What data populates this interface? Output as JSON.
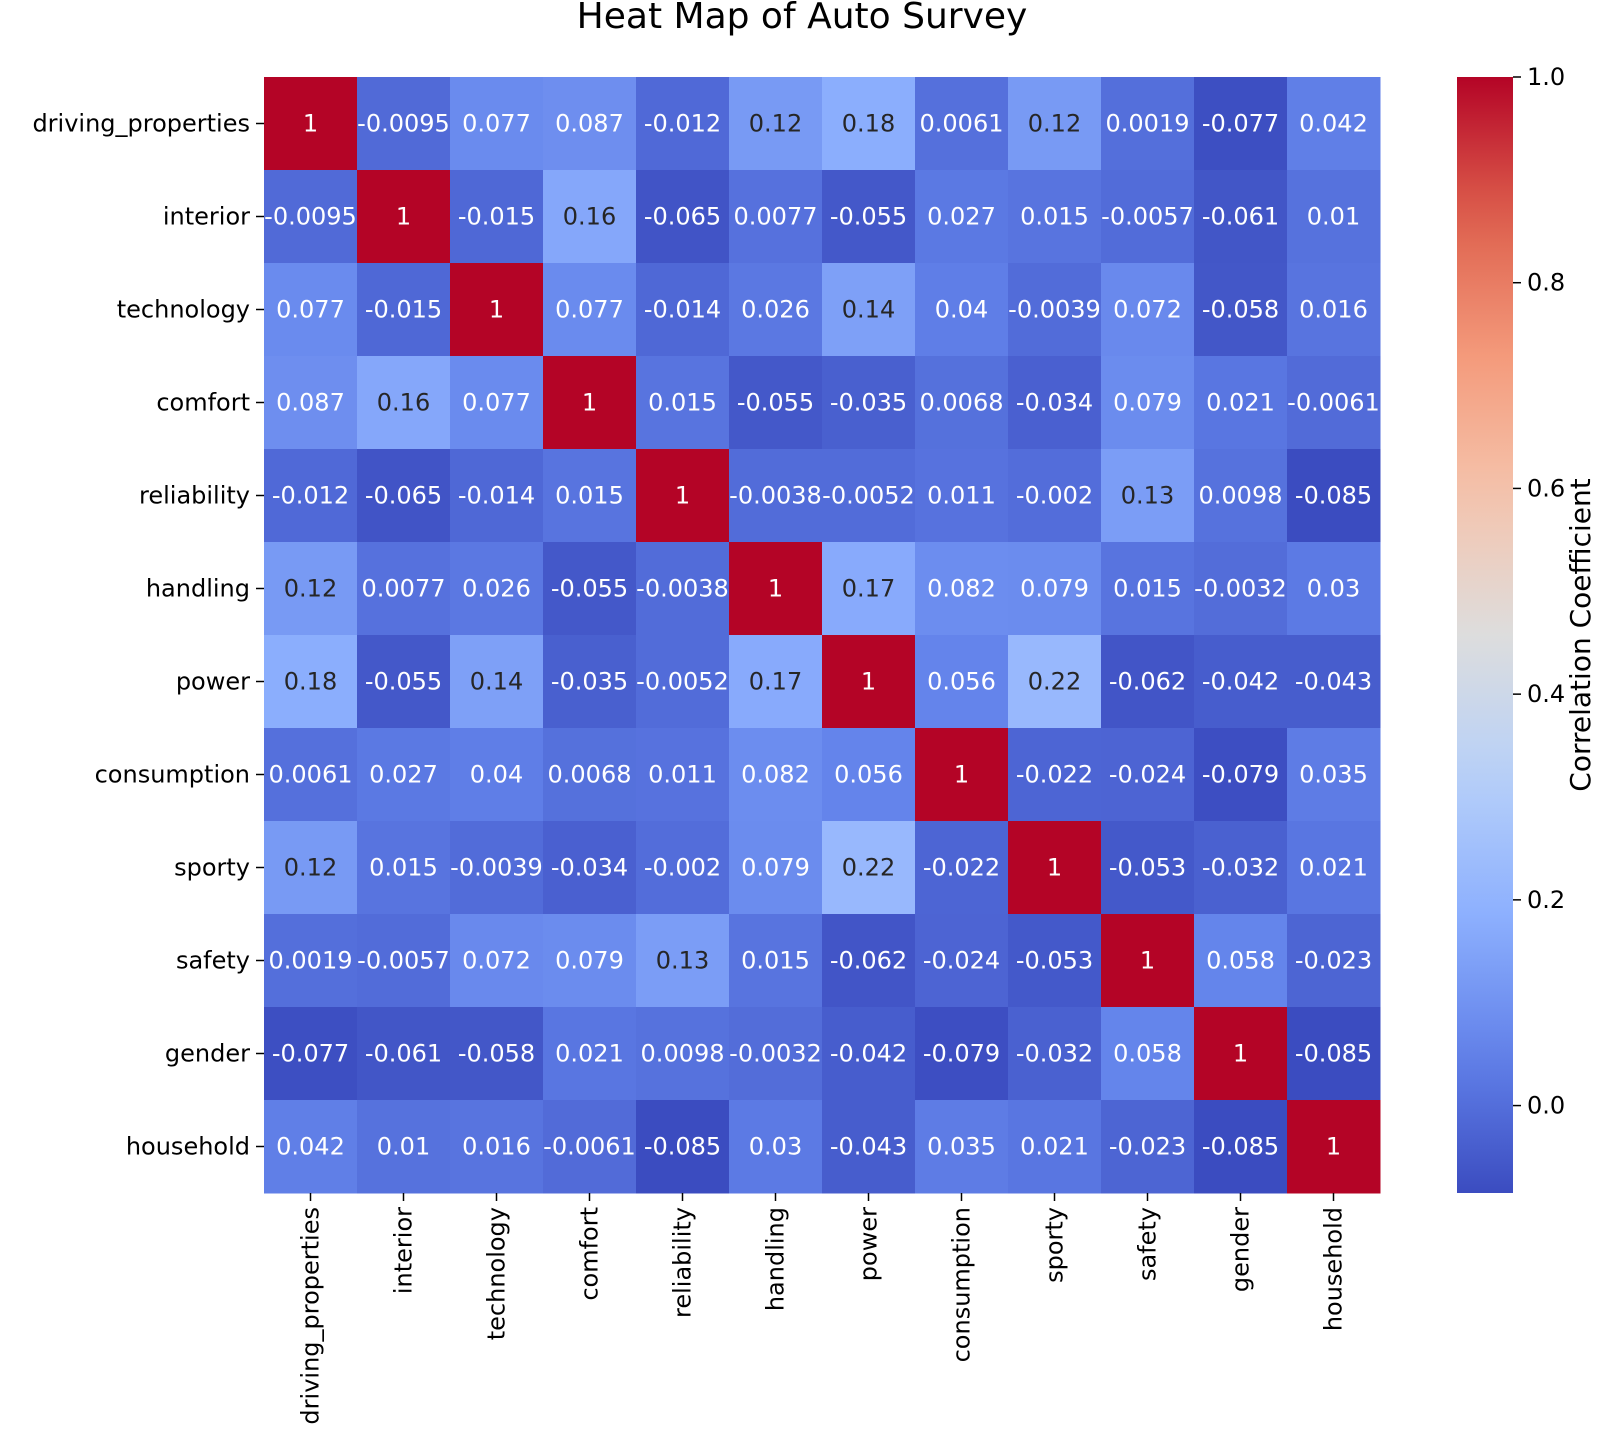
{
  "chart_data": {
    "type": "heatmap",
    "title": "Heat Map of Auto Survey",
    "x_labels": [
      "driving_properties",
      "interior",
      "technology",
      "comfort",
      "reliability",
      "handling",
      "power",
      "consumption",
      "sporty",
      "safety",
      "gender",
      "household"
    ],
    "y_labels": [
      "driving_properties",
      "interior",
      "technology",
      "comfort",
      "reliability",
      "handling",
      "power",
      "consumption",
      "sporty",
      "safety",
      "gender",
      "household"
    ],
    "values": [
      [
        1,
        -0.0095,
        0.077,
        0.087,
        -0.012,
        0.12,
        0.18,
        0.0061,
        0.12,
        0.0019,
        -0.077,
        0.042
      ],
      [
        -0.0095,
        1,
        -0.015,
        0.16,
        -0.065,
        0.0077,
        -0.055,
        0.027,
        0.015,
        -0.0057,
        -0.061,
        0.01
      ],
      [
        0.077,
        -0.015,
        1,
        0.077,
        -0.014,
        0.026,
        0.14,
        0.04,
        -0.0039,
        0.072,
        -0.058,
        0.016
      ],
      [
        0.087,
        0.16,
        0.077,
        1,
        0.015,
        -0.055,
        -0.035,
        0.0068,
        -0.034,
        0.079,
        0.021,
        -0.0061
      ],
      [
        -0.012,
        -0.065,
        -0.014,
        0.015,
        1,
        -0.0038,
        -0.0052,
        0.011,
        -0.002,
        0.13,
        0.0098,
        -0.085
      ],
      [
        0.12,
        0.0077,
        0.026,
        -0.055,
        -0.0038,
        1,
        0.17,
        0.082,
        0.079,
        0.015,
        -0.0032,
        0.03
      ],
      [
        0.18,
        -0.055,
        0.14,
        -0.035,
        -0.0052,
        0.17,
        1,
        0.056,
        0.22,
        -0.062,
        -0.042,
        -0.043
      ],
      [
        0.0061,
        0.027,
        0.04,
        0.0068,
        0.011,
        0.082,
        0.056,
        1,
        -0.022,
        -0.024,
        -0.079,
        0.035
      ],
      [
        0.12,
        0.015,
        -0.0039,
        -0.034,
        -0.002,
        0.079,
        0.22,
        -0.022,
        1,
        -0.053,
        -0.032,
        0.021
      ],
      [
        0.0019,
        -0.0057,
        0.072,
        0.079,
        0.13,
        0.015,
        -0.062,
        -0.024,
        -0.053,
        1,
        0.058,
        -0.023
      ],
      [
        -0.077,
        -0.061,
        -0.058,
        0.021,
        0.0098,
        -0.0032,
        -0.042,
        -0.079,
        -0.032,
        0.058,
        1,
        -0.085
      ],
      [
        0.042,
        0.01,
        0.016,
        -0.0061,
        -0.085,
        0.03,
        -0.043,
        0.035,
        0.021,
        -0.023,
        -0.085,
        1
      ]
    ],
    "colormap": "coolwarm",
    "vmin": -0.085,
    "vmax": 1.0,
    "colorbar": {
      "label": "Correlation Coefficient",
      "ticks": [
        0.0,
        0.2,
        0.4,
        0.6,
        0.8,
        1.0
      ],
      "tick_labels": [
        "0.0",
        "0.2",
        "0.4",
        "0.6",
        "0.8",
        "1.0"
      ]
    },
    "annotate": true,
    "grid": false
  }
}
